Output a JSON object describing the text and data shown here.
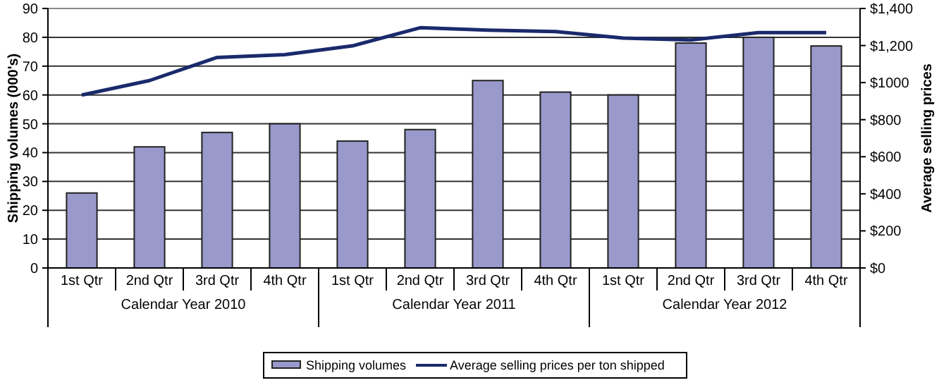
{
  "chart_data": {
    "type": "bar",
    "categories": [
      "1st Qtr",
      "2nd Qtr",
      "3rd Qtr",
      "4th Qtr",
      "1st Qtr",
      "2nd Qtr",
      "3rd Qtr",
      "4th Qtr",
      "1st Qtr",
      "2nd Qtr",
      "3rd Qtr",
      "4th Qtr"
    ],
    "annotations": [
      "Calendar Year 2010",
      "Calendar Year 2011",
      "Calendar Year 2012"
    ],
    "ylabel": "Shipping volumes (000's)",
    "y2label": "Average selling prices",
    "series": [
      {
        "name": "Shipping volumes",
        "color": "#9999cc",
        "values": [
          26,
          42,
          47,
          50,
          44,
          48,
          65,
          61,
          60,
          78,
          80,
          77
        ]
      },
      {
        "name": "Average selling prices per ton shipped",
        "type": "line",
        "axis": "y2",
        "color": "#1a2a6c",
        "values": [
          933,
          1011,
          1136,
          1151,
          1198,
          1296,
          1283,
          1275,
          1240,
          1230,
          1270,
          1270
        ]
      }
    ],
    "ylim": [
      0,
      90
    ],
    "yticks": [
      0,
      10,
      20,
      30,
      40,
      50,
      60,
      70,
      80,
      90
    ],
    "y2lim": [
      0,
      1400
    ],
    "y2ticks": [
      {
        "value": 0,
        "label": "$0"
      },
      {
        "value": 200,
        "label": "$200"
      },
      {
        "value": 400,
        "label": "$400"
      },
      {
        "value": 600,
        "label": "$600"
      },
      {
        "value": 800,
        "label": "$800"
      },
      {
        "value": 1000,
        "label": "$1000"
      },
      {
        "value": 1200,
        "label": "$1,200"
      },
      {
        "value": 1400,
        "label": "$1,400"
      }
    ],
    "grid": "y",
    "legend": "bottom",
    "marker": "none",
    "line_style": "solid"
  }
}
